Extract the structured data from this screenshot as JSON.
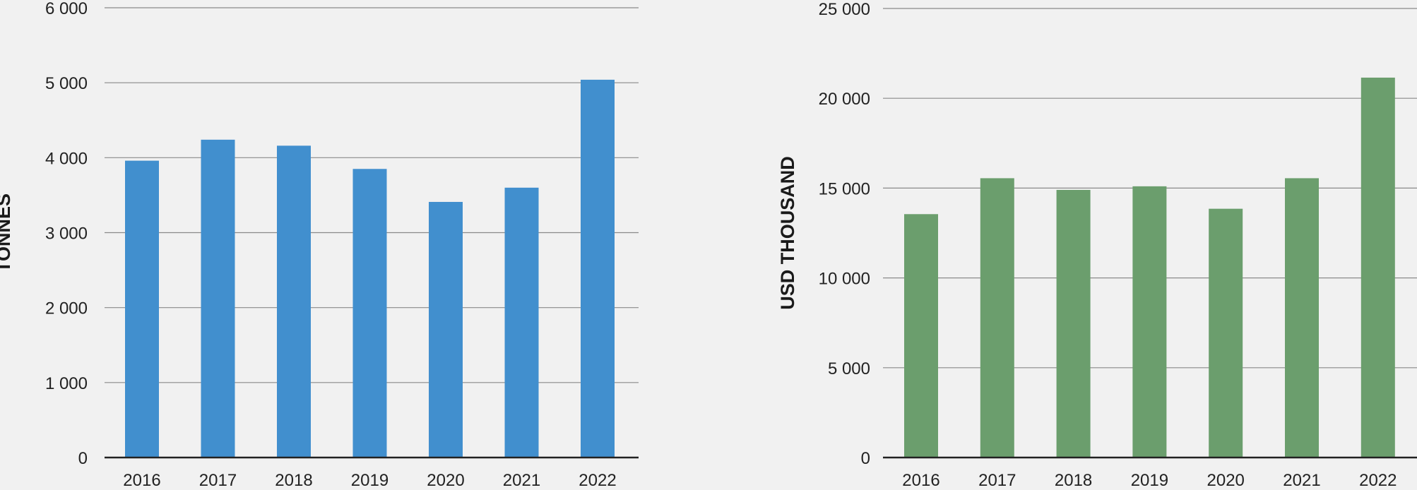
{
  "chart_data": [
    {
      "type": "bar",
      "title": "",
      "xlabel": "",
      "ylabel": "TONNES",
      "categories": [
        "2016",
        "2017",
        "2018",
        "2019",
        "2020",
        "2021",
        "2022"
      ],
      "values": [
        3960,
        4240,
        4160,
        3850,
        3410,
        3600,
        5040
      ],
      "ylim": [
        0,
        6000
      ],
      "yticks": [
        0,
        1000,
        2000,
        3000,
        4000,
        5000,
        6000
      ],
      "ytick_labels": [
        "0",
        "1 000",
        "2 000",
        "3 000",
        "4 000",
        "5 000",
        "6 000"
      ],
      "bar_color": "#418fce",
      "grid": true,
      "legend": "none"
    },
    {
      "type": "bar",
      "title": "",
      "xlabel": "",
      "ylabel": "USD THOUSAND",
      "categories": [
        "2016",
        "2017",
        "2018",
        "2019",
        "2020",
        "2021",
        "2022"
      ],
      "values": [
        13550,
        15550,
        14900,
        15100,
        13850,
        15550,
        21150
      ],
      "ylim": [
        0,
        25000
      ],
      "yticks": [
        0,
        5000,
        10000,
        15000,
        20000,
        25000
      ],
      "ytick_labels": [
        "0",
        "5 000",
        "10 000",
        "15 000",
        "20 000",
        "25 000"
      ],
      "bar_color": "#6b9e6d",
      "grid": true,
      "legend": "none"
    }
  ]
}
